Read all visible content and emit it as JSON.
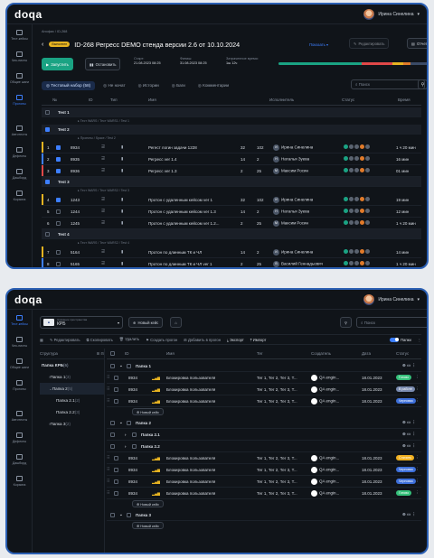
{
  "app": {
    "logo": "doqa",
    "user": "Ирина Синелина"
  },
  "sidebar1": [
    {
      "label": "Тест-кейсы",
      "active": false
    },
    {
      "label": "Чек-листы",
      "active": false
    },
    {
      "label": "Общие шаги",
      "active": false
    },
    {
      "label": "Прогоны",
      "active": true
    },
    {
      "label": "Автотесты",
      "active": false
    },
    {
      "label": "Дефекты",
      "active": false
    },
    {
      "label": "Дашборд",
      "active": false
    },
    {
      "label": "Корзина",
      "active": false
    }
  ],
  "run": {
    "breadcrumb": "Апофис / ID-268",
    "status_badge": "Выполнен",
    "title": "ID-268 Регресс DEMO стенда версии 2.6 от 10.10.2024",
    "show_btn": "Показать",
    "edit_btn": "Редактировать",
    "report_btn": "Отчет",
    "run_btn": "Запустить",
    "stop_btn": "Остановить",
    "start_label": "Старт:",
    "start_value": "21.08.2023 08:25",
    "end_label": "Финиш:",
    "end_value": "31.08.2023 08:25",
    "spent_label": "Затраченное время:",
    "spent_value": "1ш 12ч",
    "progress": {
      "passed": 0.55,
      "failed": 0.2,
      "blocked": 0.07,
      "skipped": 0.05,
      "untested": 0.13
    }
  },
  "tabs": [
    {
      "label": "Тестовый набор (58)",
      "active": true
    },
    {
      "label": "Не начат",
      "active": false
    },
    {
      "label": "Истории",
      "active": false
    },
    {
      "label": "Баги",
      "active": false
    },
    {
      "label": "Комментарии",
      "active": false
    }
  ],
  "search1_placeholder": "Поиск",
  "cols1": {
    "num": "№",
    "id": "ID",
    "type": "Тип",
    "name": "Имя",
    "executor": "Исполнитель",
    "status": "Статус",
    "time": "Время"
  },
  "rows1": [
    {
      "kind": "group",
      "label": "Test 1"
    },
    {
      "kind": "path",
      "label": "Тест WARS / Тест WARS1 / Test 1"
    },
    {
      "kind": "group",
      "label": "Test 2",
      "checked": true
    },
    {
      "kind": "path",
      "label": "Проекты / Space / Test 2"
    },
    {
      "kind": "case",
      "num": "1",
      "id": "8934",
      "name": "Регест логин задачи 1228",
      "a": "32",
      "b": "102",
      "exec": "Ирина Синелина",
      "time": "1 ч 20 мин",
      "ind": "#e7b321",
      "checked": true
    },
    {
      "kind": "case",
      "num": "2",
      "id": "8935",
      "name": "Регресс ver 1.4",
      "a": "14",
      "b": "2",
      "exec": "Наталья Зуева",
      "time": "16 мин",
      "ind": "#3d7fff",
      "checked": true
    },
    {
      "kind": "case",
      "num": "3",
      "id": "8936",
      "name": "Регресс ver 1.3",
      "a": "2",
      "b": "25",
      "exec": "Максим Росин",
      "time": "01 мин",
      "ind": "#e04848",
      "checked": true
    },
    {
      "kind": "group",
      "label": "Test 3",
      "checked": true
    },
    {
      "kind": "path",
      "label": "Тест WARS / Тест WARS2 / Test 3"
    },
    {
      "kind": "case",
      "num": "4",
      "id": "1243",
      "name": "Протон с удаленным кейсом ver 1",
      "a": "32",
      "b": "102",
      "exec": "Ирина Синелина",
      "time": "19 мин",
      "ind": "#e7b321",
      "checked": true
    },
    {
      "kind": "case",
      "num": "5",
      "id": "1244",
      "name": "Протон с удаленным кейсом ver 1.3",
      "a": "14",
      "b": "2",
      "exec": "Наталья Зуева",
      "time": "12 мин",
      "ind": "",
      "checked": false
    },
    {
      "kind": "case",
      "num": "6",
      "id": "1245",
      "name": "Протон с удаленным кейсом ver 1.2...",
      "a": "2",
      "b": "25",
      "exec": "Максим Росин",
      "time": "1 ч 20 мин",
      "ind": "",
      "checked": false
    },
    {
      "kind": "group",
      "label": "Test 4"
    },
    {
      "kind": "path",
      "label": "Тест WARS / Тест WARS2 / Test 4"
    },
    {
      "kind": "case",
      "num": "7",
      "id": "5164",
      "name": "Протон по длинным ТК и ЧЛ",
      "a": "14",
      "b": "2",
      "exec": "Ирина Синелина",
      "time": "14 мин",
      "ind": "#e7b321",
      "checked": false
    },
    {
      "kind": "case",
      "num": "8",
      "id": "5165",
      "name": "Протон по длинным ТК и ЧЛ ver 1",
      "a": "2",
      "b": "25",
      "exec": "Василий Геннадьевич",
      "time": "1 ч 20 мин",
      "ind": "#3d7fff",
      "checked": false
    }
  ],
  "sidebar2": [
    {
      "label": "Тест-кейсы",
      "active": true
    },
    {
      "label": "Чек-листы",
      "active": false
    },
    {
      "label": "Общие шаги",
      "active": false
    },
    {
      "label": "Прогоны",
      "active": false
    },
    {
      "label": "Автотесты",
      "active": false
    },
    {
      "label": "Дефекты",
      "active": false
    },
    {
      "label": "Дашборд",
      "active": false
    },
    {
      "label": "Корзина",
      "active": false
    }
  ],
  "proj": {
    "caption": "Название пространства",
    "value": "КРБ",
    "new_case": "Новый кейс",
    "search_placeholder": "Поиск"
  },
  "toolbar2": {
    "edit": "Редактировать",
    "copy": "Скопировать",
    "delete": "Удалить",
    "create_run": "Создать прогон",
    "add_to_run": "Добавить в прогон",
    "export": "Экспорт",
    "import": "Импорт",
    "folders": "Папки"
  },
  "tree": {
    "header": "Структура",
    "items": [
      {
        "label": "Папка КРБ",
        "count": "(6)",
        "level": 0,
        "sel": false
      },
      {
        "label": "Папка 1",
        "count": "(3)",
        "level": 1,
        "sel": false
      },
      {
        "label": "Папка 2",
        "count": "(5)",
        "level": 1,
        "sel": true
      },
      {
        "label": "Папка 2.1",
        "count": "(2)",
        "level": 2,
        "sel": false
      },
      {
        "label": "Папка 2.2",
        "count": "(3)",
        "level": 2,
        "sel": false
      },
      {
        "label": "Папка 3",
        "count": "(2)",
        "level": 1,
        "sel": false
      }
    ]
  },
  "cols2": {
    "id": "ID",
    "name": "Имя",
    "tag": "Тег",
    "creator": "Создатель",
    "date": "Дата",
    "status": "Статус"
  },
  "rows2": [
    {
      "kind": "folder",
      "label": "Папка 1",
      "indent": 0
    },
    {
      "kind": "case",
      "id": "8934",
      "name": "Блокировка пользователя",
      "tag": "Тег 1, Тег 2, Тег 3, Т...",
      "creator": "QA engin...",
      "date": "18.01.2023",
      "status": "Готово",
      "scolor": "#35c07a"
    },
    {
      "kind": "case",
      "id": "8934",
      "name": "Блокировка пользователя",
      "tag": "Тег 1, Тег 2, Тег 3, Т...",
      "creator": "QA engin...",
      "date": "18.01.2023",
      "status": "В работе",
      "scolor": "#7a8bb0"
    },
    {
      "kind": "case",
      "id": "8934",
      "name": "Блокировка пользователя",
      "tag": "Тег 1, Тег 2, Тег 3, Т...",
      "creator": "QA engin...",
      "date": "18.01.2023",
      "status": "Черновик",
      "scolor": "#3d6fd9"
    },
    {
      "kind": "new",
      "label": "Новый кейс"
    },
    {
      "kind": "folder",
      "label": "Папка 2",
      "indent": 0
    },
    {
      "kind": "folder",
      "label": "Папка 2.1",
      "indent": 1
    },
    {
      "kind": "folder",
      "label": "Папка 2.2",
      "indent": 1
    },
    {
      "kind": "case",
      "id": "8934",
      "name": "Блокировка пользователя",
      "tag": "Тег 1, Тег 2, Тег 3, Т...",
      "creator": "QA engin...",
      "date": "18.01.2023",
      "status": "Сличить",
      "scolor": "#f0b020"
    },
    {
      "kind": "case",
      "id": "8934",
      "name": "Блокировка пользователя",
      "tag": "Тег 1, Тег 2, Тег 3, Т...",
      "creator": "QA engin...",
      "date": "18.01.2023",
      "status": "Черновик",
      "scolor": "#3d6fd9"
    },
    {
      "kind": "case",
      "id": "8934",
      "name": "Блокировка пользователя",
      "tag": "Тег 1, Тег 2, Тег 3, Т...",
      "creator": "QA engin...",
      "date": "18.01.2023",
      "status": "Черновик",
      "scolor": "#3d6fd9"
    },
    {
      "kind": "case",
      "id": "8934",
      "name": "Блокировка пользователя",
      "tag": "Тег 1, Тег 2, Тег 3, Т...",
      "creator": "QA engin...",
      "date": "18.01.2023",
      "status": "Готово",
      "scolor": "#35c07a"
    },
    {
      "kind": "new",
      "label": "Новый кейс"
    },
    {
      "kind": "folder",
      "label": "Папка 3",
      "indent": 0
    },
    {
      "kind": "new",
      "label": "Новый кейс"
    }
  ]
}
